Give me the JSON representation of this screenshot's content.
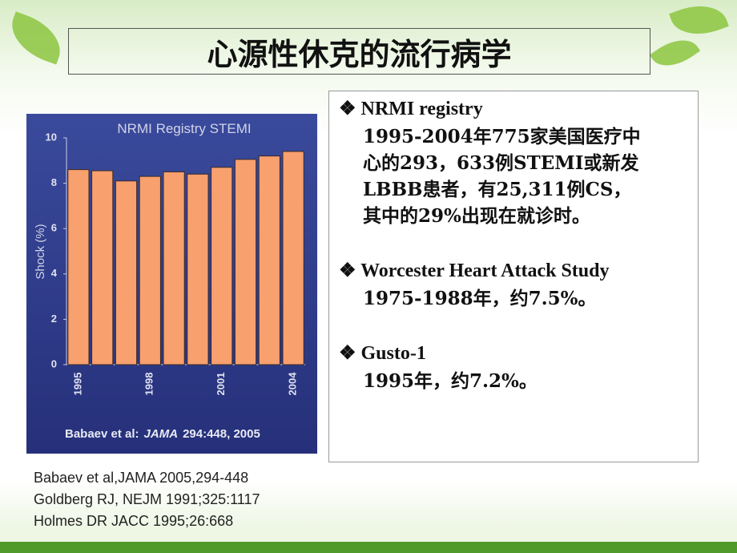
{
  "title": "心源性休克的流行病学",
  "chart_data": {
    "type": "bar",
    "title": "NRMI Registry STEMI",
    "y_label": "Shock (%)",
    "source": [
      "Babaev et al:",
      "JAMA",
      "294:448, 2005"
    ],
    "categories": [
      "1995",
      null,
      null,
      "1998",
      null,
      null,
      "2001",
      null,
      null,
      "2004"
    ],
    "values": [
      8.6,
      8.55,
      8.1,
      8.3,
      8.5,
      8.4,
      8.7,
      9.05,
      9.2,
      9.4
    ],
    "color": "#f8a06e",
    "ylim": [
      0,
      10
    ],
    "yticks": [
      0,
      2,
      4,
      6,
      8,
      10
    ]
  },
  "bullets": [
    {
      "heading": "❖ NRMI registry",
      "lines": [
        "1995-2004年775家美国医疗中",
        "心的293，633例STEMI或新发",
        "LBBB患者，有25,311例CS，",
        "其中的29%出现在就诊时。"
      ]
    },
    {
      "heading": "❖ Worcester Heart Attack Study",
      "lines": [
        "1975-1988年，约7.5%。"
      ]
    },
    {
      "heading": "❖ Gusto-1",
      "lines": [
        "1995年，约7.2%。"
      ]
    }
  ],
  "references": [
    "Babaev et al,JAMA 2005,294-448",
    "Goldberg RJ, NEJM 1991;325:1117",
    "Holmes DR JACC 1995;26:668"
  ]
}
